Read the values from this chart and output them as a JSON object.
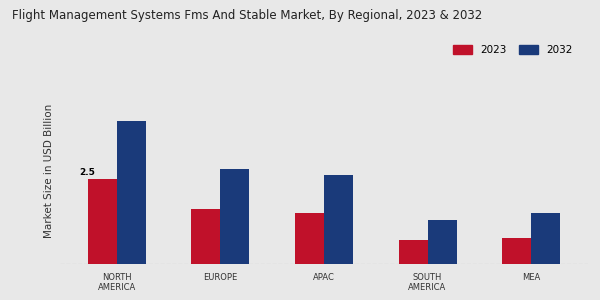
{
  "title": "Flight Management Systems Fms And Stable Market, By Regional, 2023 & 2032",
  "ylabel": "Market Size in USD Billion",
  "categories": [
    "NORTH\nAMERICA",
    "EUROPE",
    "APAC",
    "SOUTH\nAMERICA",
    "MEA"
  ],
  "values_2023": [
    2.5,
    1.6,
    1.5,
    0.7,
    0.75
  ],
  "values_2032": [
    4.2,
    2.8,
    2.6,
    1.3,
    1.5
  ],
  "color_2023": "#c0112a",
  "color_2032": "#1a3a7a",
  "annotation_text": "2.5",
  "background_color": "#e8e8e8",
  "bottom_bar_color": "#c0112a",
  "legend_labels": [
    "2023",
    "2032"
  ],
  "bar_width": 0.28,
  "title_fontsize": 8.5,
  "axis_label_fontsize": 7.5,
  "tick_fontsize": 6,
  "legend_fontsize": 7.5
}
